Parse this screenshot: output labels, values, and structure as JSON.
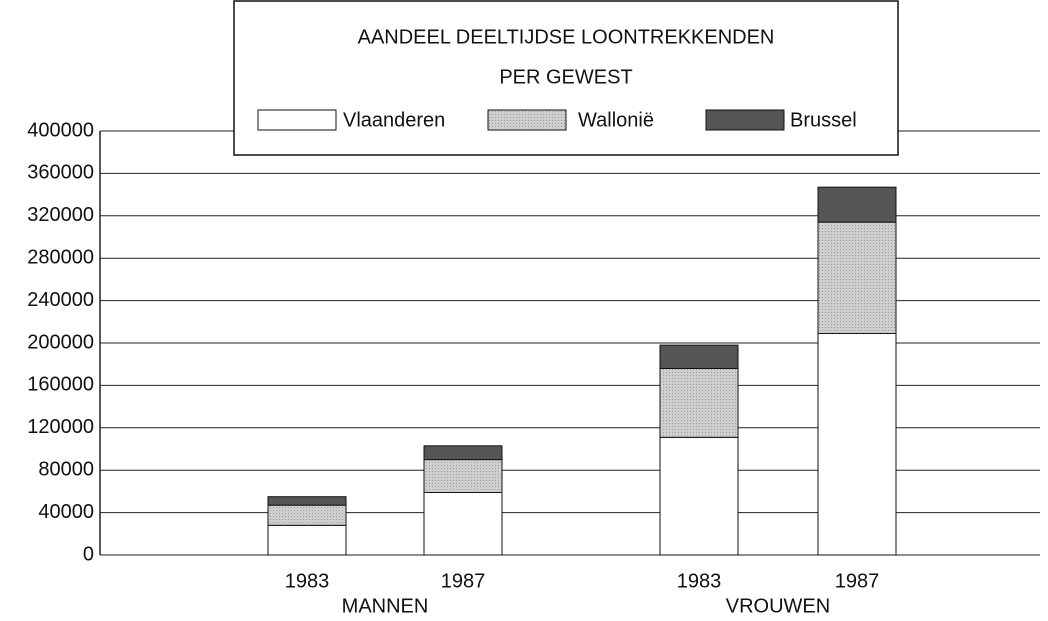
{
  "chart_data": {
    "type": "bar",
    "stacked": true,
    "title": "AANDEEL DEELTIJDSE LOONTREKKENDEN",
    "subtitle": "PER GEWEST",
    "categories": [
      "1983",
      "1987",
      "1983",
      "1987"
    ],
    "groups": [
      "MANNEN",
      "VROUWEN"
    ],
    "series": [
      {
        "name": "Vlaanderen",
        "color": "#ffffff",
        "values": [
          28000,
          59000,
          111000,
          209000
        ]
      },
      {
        "name": "Wallonië",
        "color": "#cfcfcf",
        "values": [
          19000,
          31000,
          65000,
          105000
        ]
      },
      {
        "name": "Brussel",
        "color": "#555555",
        "values": [
          8000,
          13000,
          22000,
          33000
        ]
      }
    ],
    "ylim": [
      0,
      400000
    ],
    "yticks": [
      0,
      40000,
      80000,
      120000,
      160000,
      200000,
      240000,
      280000,
      320000,
      360000,
      400000
    ],
    "grid": true,
    "legend": "top"
  }
}
